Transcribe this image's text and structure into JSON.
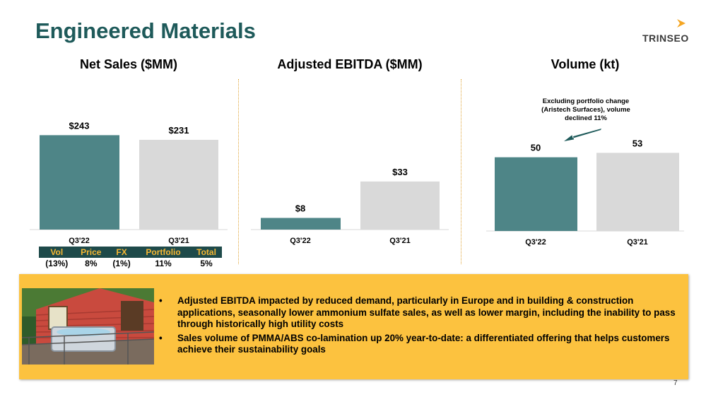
{
  "slide": {
    "title": "Engineered Materials",
    "logo_text": "TRINSEO",
    "page_number": "7"
  },
  "colors": {
    "q3_22": "#4e8587",
    "q3_21": "#d9d9d9",
    "arrow": "#1e5a5a",
    "callout": "#fcc23f",
    "table_header_bg": "#1e4a4a",
    "table_header_text": "#f5b733"
  },
  "chart_data": [
    {
      "type": "bar",
      "title": "Net Sales ($MM)",
      "categories": [
        "Q3'22",
        "Q3'21"
      ],
      "values": [
        243,
        231
      ],
      "value_labels": [
        "$243",
        "$231"
      ],
      "ylim": [
        0,
        300
      ]
    },
    {
      "type": "bar",
      "title": "Adjusted EBITDA ($MM)",
      "categories": [
        "Q3'22",
        "Q3'21"
      ],
      "values": [
        8,
        33
      ],
      "value_labels": [
        "$8",
        "$33"
      ],
      "ylim": [
        0,
        80
      ]
    },
    {
      "type": "bar",
      "title": "Volume (kt)",
      "categories": [
        "Q3'22",
        "Q3'21"
      ],
      "values": [
        50,
        53
      ],
      "value_labels": [
        "50",
        "53"
      ],
      "ylim": [
        0,
        80
      ],
      "annotation": [
        "Excluding portfolio change",
        "(Aristech Surfaces), volume",
        "declined 11%"
      ]
    }
  ],
  "variance_table": {
    "headers": [
      "Vol",
      "Price",
      "FX",
      "Portfolio",
      "Total"
    ],
    "values": [
      "(13%)",
      "8%",
      "(1%)",
      "11%",
      "5%"
    ]
  },
  "callout": {
    "photo_icon": "house-hot-tub-photo",
    "bullets": [
      "Adjusted EBITDA impacted by reduced demand, particularly in Europe and in building & construction applications, seasonally lower ammonium sulfate sales, as well as lower margin, including the inability to pass through historically high utility costs",
      "Sales volume of PMMA/ABS co-lamination up 20% year-to-date: a differentiated offering that helps customers achieve their sustainability goals"
    ]
  }
}
